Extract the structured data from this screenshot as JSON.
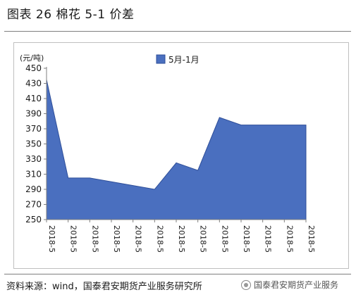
{
  "header": {
    "title": "图表 26  棉花 5-1 价差"
  },
  "chart_data": {
    "type": "area",
    "y_unit": "(元/吨)",
    "ylim": [
      250,
      450
    ],
    "y_ticks": [
      250,
      270,
      290,
      310,
      330,
      350,
      370,
      390,
      410,
      430,
      450
    ],
    "x": [
      "2018-5",
      "2018-5",
      "2018-5",
      "2018-5",
      "2018-5",
      "2018-5",
      "2018-5",
      "2018-5",
      "2018-5",
      "2018-5",
      "2018-5",
      "2018-5",
      "2018-5"
    ],
    "series": [
      {
        "name": "5月-1月",
        "x_positions": [
          0,
          1,
          2,
          3,
          4,
          5,
          6,
          7,
          8,
          9,
          10,
          11,
          12
        ],
        "values": [
          435,
          305,
          305,
          300,
          295,
          290,
          325,
          315,
          385,
          375,
          375,
          375,
          375
        ]
      }
    ],
    "legend": "top-center",
    "grid": false,
    "colors": {
      "fill": "#4a6fbf",
      "stroke": "#2f4f99"
    }
  },
  "footer": {
    "source": "资料来源：wind，国泰君安期货产业服务研究所",
    "watermark": "国泰君安期货产业服务",
    "watermark_icon": "wechat-icon"
  }
}
